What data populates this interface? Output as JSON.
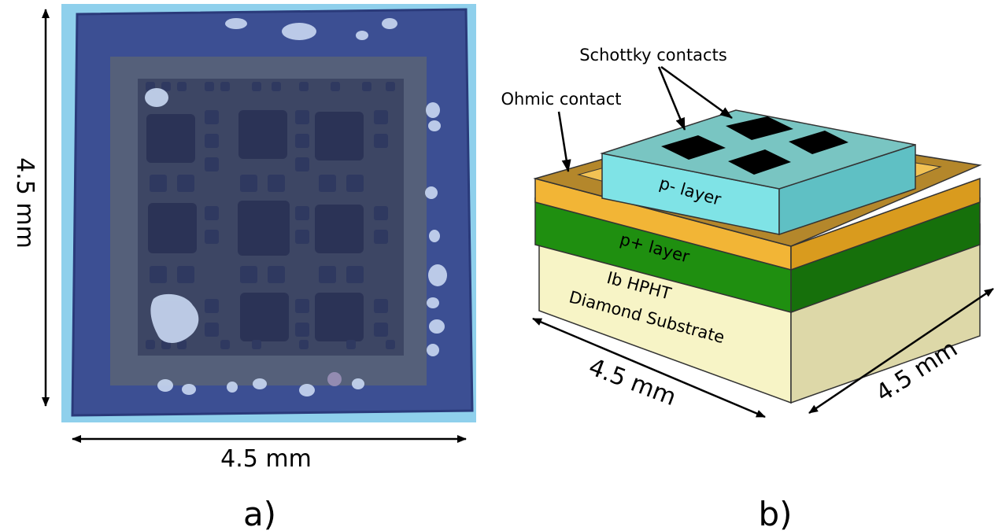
{
  "panel_a": {
    "label": "a)",
    "width_label": "4.5 mm",
    "height_label": "4.5 mm"
  },
  "panel_b": {
    "label": "b)",
    "labels": {
      "schottky": "Schottky contacts",
      "ohmic": "Ohmic contact",
      "p_minus": "p- layer",
      "p_plus": "p+ layer",
      "substrate_line1": "Ib HPHT",
      "substrate_line2": "Diamond Substrate",
      "front_dim": "4.5 mm",
      "side_dim": "4.5 mm"
    }
  },
  "colors": {
    "photo_background": "#8fd0ec",
    "photo_sample": "#3c4f93",
    "photo_inner_square": "#55607a",
    "p_minus_layer": "#7fe3e6",
    "p_plus_layer": "#1f8f10",
    "ohmic_contact": "#f2b536",
    "substrate": "#f7f4c6",
    "schottky_contact": "#000000"
  }
}
